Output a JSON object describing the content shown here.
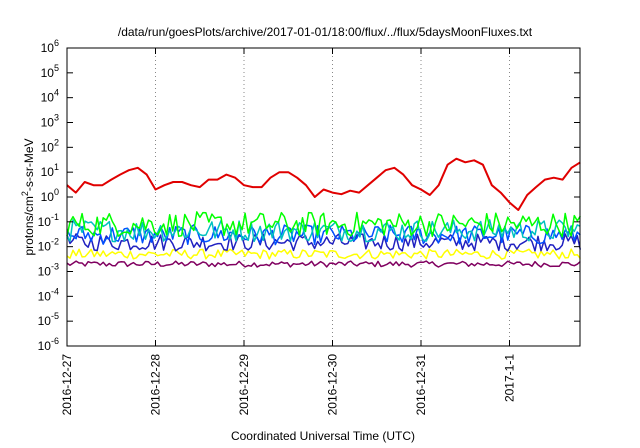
{
  "chart_data": {
    "type": "line",
    "title": "/data/run/goesPlots/archive/2017-01-01/18:00/flux/../flux/5daysMoonFluxes.txt",
    "xlabel": "Coordinated Universal Time (UTC)",
    "ylabel_main": "protons/cm",
    "ylabel_sup": "2",
    "ylabel_rest": "-s-sr-MeV",
    "x_scale": "time",
    "x_range_days": [
      0,
      6.8
    ],
    "x_ticks": [
      {
        "day": 0,
        "label": "2016-12-27"
      },
      {
        "day": 1,
        "label": "2016-12-28"
      },
      {
        "day": 2,
        "label": "2016-12-29"
      },
      {
        "day": 3,
        "label": "2016-12-30"
      },
      {
        "day": 4,
        "label": "2016-12-31"
      },
      {
        "day": 5,
        "label": "2017-1-1"
      }
    ],
    "y_scale": "log",
    "y_range_exp": [
      -6,
      6
    ],
    "y_ticks": [
      {
        "exp": 6,
        "base": "10",
        "sup": "6"
      },
      {
        "exp": 5,
        "base": "10",
        "sup": "5"
      },
      {
        "exp": 4,
        "base": "10",
        "sup": "4"
      },
      {
        "exp": 3,
        "base": "10",
        "sup": "3"
      },
      {
        "exp": 2,
        "base": "10",
        "sup": "2"
      },
      {
        "exp": 1,
        "base": "10",
        "sup": "1"
      },
      {
        "exp": 0,
        "base": "10",
        "sup": "0"
      },
      {
        "exp": -1,
        "base": "10",
        "sup": "-1"
      },
      {
        "exp": -2,
        "base": "10",
        "sup": "-2"
      },
      {
        "exp": -3,
        "base": "10",
        "sup": "-3"
      },
      {
        "exp": -4,
        "base": "10",
        "sup": "-4"
      },
      {
        "exp": -5,
        "base": "10",
        "sup": "-5"
      },
      {
        "exp": -6,
        "base": "10",
        "sup": "-6"
      }
    ],
    "grid": "vertical-dotted",
    "legend": "none",
    "series": [
      {
        "color": "#e00000",
        "x": [
          0,
          0.1,
          0.2,
          0.3,
          0.4,
          0.5,
          0.6,
          0.7,
          0.8,
          0.9,
          1.0,
          1.1,
          1.2,
          1.3,
          1.4,
          1.5,
          1.6,
          1.7,
          1.8,
          1.9,
          2.0,
          2.1,
          2.2,
          2.3,
          2.4,
          2.5,
          2.6,
          2.7,
          2.8,
          2.9,
          3.0,
          3.1,
          3.2,
          3.3,
          3.4,
          3.5,
          3.6,
          3.7,
          3.8,
          3.9,
          4.0,
          4.1,
          4.2,
          4.3,
          4.4,
          4.5,
          4.6,
          4.7,
          4.8,
          4.9,
          5.0,
          5.1,
          5.2,
          5.3,
          5.4,
          5.5,
          5.6,
          5.7,
          5.8
        ],
        "y": [
          3,
          1.5,
          4,
          3,
          3,
          5,
          8,
          12,
          15,
          8,
          2,
          3,
          4,
          4,
          3,
          2.5,
          5,
          5,
          8,
          6,
          3,
          2.5,
          2.5,
          6,
          10,
          10,
          6,
          3,
          1,
          2,
          1.5,
          1.3,
          1.8,
          1.5,
          3,
          6,
          12,
          15,
          8,
          3,
          2,
          1.2,
          3,
          20,
          35,
          25,
          30,
          20,
          3,
          1.5,
          0.6,
          0.3,
          1.2,
          2.5,
          5,
          6,
          5,
          15,
          25
        ]
      },
      {
        "color": "#00ff00",
        "x": [
          0,
          5.8
        ],
        "y": [
          0.08,
          0.08
        ],
        "band": 0.5
      },
      {
        "color": "#00c0c0",
        "x": [
          0,
          5.8
        ],
        "y": [
          0.045,
          0.045
        ],
        "band": 0.45
      },
      {
        "color": "#0050ff",
        "x": [
          0,
          5.8
        ],
        "y": [
          0.03,
          0.03
        ],
        "band": 0.4
      },
      {
        "color": "#2020c0",
        "x": [
          0,
          5.8
        ],
        "y": [
          0.015,
          0.015
        ],
        "band": 0.35
      },
      {
        "color": "#ffff00",
        "x": [
          0,
          5.8
        ],
        "y": [
          0.005,
          0.005
        ],
        "band": 0.2
      },
      {
        "color": "#800060",
        "x": [
          0,
          5.8
        ],
        "y": [
          0.002,
          0.002
        ],
        "band": 0.12
      }
    ]
  }
}
